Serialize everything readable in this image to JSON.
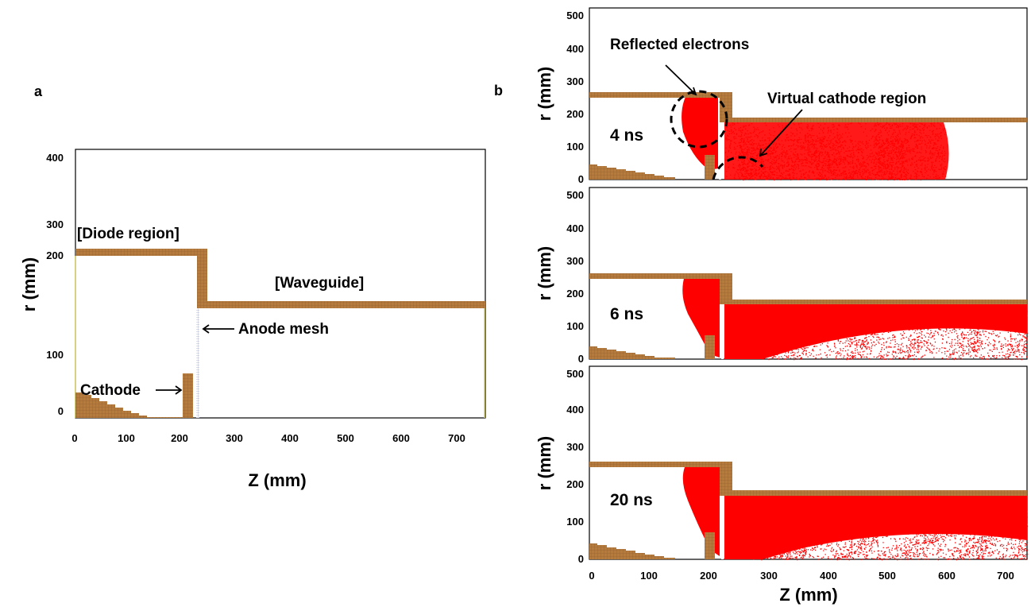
{
  "colors": {
    "wall": "#b57a3c",
    "wall_grid": "#7a4f22",
    "electrons": "#ff0000",
    "mesh": "#c4cce8",
    "frame": "#000000"
  },
  "panel_a": {
    "label": "a",
    "xlabel": "Z (mm)",
    "ylabel": "r (mm)",
    "x_ticks": [
      "0",
      "100",
      "200",
      "300",
      "400",
      "500",
      "600",
      "700"
    ],
    "y_ticks": [
      "0",
      "100",
      "200",
      "300",
      "400"
    ],
    "annotations": {
      "diode": "[Diode region]",
      "waveguide": "[Waveguide]",
      "anode": "Anode mesh",
      "cathode": "Cathode"
    }
  },
  "panel_b": {
    "label": "b",
    "xlabel": "Z (mm)",
    "ylabel": "r (mm)",
    "x_ticks": [
      "0",
      "100",
      "200",
      "300",
      "400",
      "500",
      "600",
      "700"
    ],
    "y_ticks": [
      "0",
      "100",
      "200",
      "300",
      "400",
      "500"
    ],
    "annotations": {
      "reflected": "Reflected electrons",
      "virtual": "Virtual cathode region"
    },
    "times": [
      "4 ns",
      "6 ns",
      "20 ns"
    ]
  },
  "geometry_mm": {
    "diode_radius": 250,
    "waveguide_radius": 175,
    "anode_z": 225,
    "step_z": 240,
    "z_max": 740,
    "cathode_z": [
      200,
      220
    ],
    "cathode_height": 70,
    "cathode_base_height": 40
  }
}
